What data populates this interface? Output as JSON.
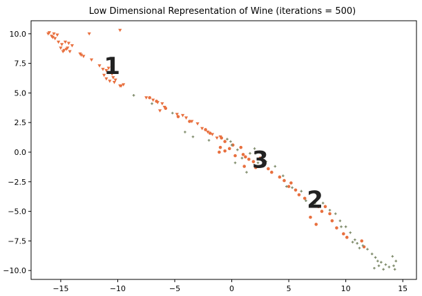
{
  "chart_data": {
    "type": "scatter",
    "title": "Low Dimensional Representation of Wine (iterations = 500)",
    "xlabel": "",
    "ylabel": "",
    "xlim": [
      -17.6,
      16.2
    ],
    "ylim": [
      -10.75,
      11.1
    ],
    "xticks": [
      -15,
      -10,
      -5,
      0,
      5,
      10,
      15
    ],
    "yticks": [
      10.0,
      7.5,
      5.0,
      2.5,
      0.0,
      -2.5,
      -5.0,
      -7.5,
      -10.0
    ],
    "ytick_labels": [
      "10.0",
      "7.5",
      "5.0",
      "2.5",
      "0.0",
      "−2.5",
      "−5.0",
      "−7.5",
      "−10.0"
    ],
    "xtick_labels": [
      "−15",
      "−10",
      "−5",
      "0",
      "5",
      "10",
      "15"
    ],
    "grid": false,
    "colors": {
      "orange": "#e8703f",
      "green": "#7e8b6a",
      "frame": "#000000"
    },
    "cluster_labels": [
      {
        "text": "1",
        "x": -10.5,
        "y": 7.3
      },
      {
        "text": "3",
        "x": 2.5,
        "y": -0.6
      },
      {
        "text": "2",
        "x": 7.3,
        "y": -4.0
      }
    ],
    "series": [
      {
        "marker": "triangle-down",
        "color": "#e8703f",
        "points": [
          [
            -16.1,
            10.0
          ],
          [
            -15.8,
            9.8
          ],
          [
            -15.6,
            10.0
          ],
          [
            -15.5,
            9.6
          ],
          [
            -15.3,
            9.9
          ],
          [
            -15.7,
            9.7
          ],
          [
            -15.2,
            9.3
          ],
          [
            -14.9,
            9.1
          ],
          [
            -15.0,
            8.8
          ],
          [
            -14.7,
            8.6
          ],
          [
            -14.5,
            8.7
          ],
          [
            -14.2,
            8.5
          ],
          [
            -14.6,
            9.3
          ],
          [
            -14.3,
            9.2
          ],
          [
            -14.0,
            9.0
          ],
          [
            -14.4,
            8.8
          ],
          [
            -13.3,
            8.3
          ],
          [
            -13.0,
            8.1
          ],
          [
            -12.3,
            7.8
          ],
          [
            -11.6,
            7.3
          ],
          [
            -11.3,
            7.0
          ],
          [
            -11.0,
            6.9
          ],
          [
            -10.8,
            7.1
          ],
          [
            -11.2,
            6.5
          ],
          [
            -11.0,
            6.2
          ],
          [
            -10.7,
            6.0
          ],
          [
            -10.4,
            6.3
          ],
          [
            -10.2,
            6.1
          ],
          [
            -10.5,
            6.6
          ],
          [
            -9.8,
            5.6
          ],
          [
            -9.5,
            5.7
          ],
          [
            -12.5,
            10.0
          ],
          [
            -9.8,
            10.3
          ],
          [
            -7.5,
            4.6
          ],
          [
            -6.9,
            4.4
          ],
          [
            -6.5,
            4.2
          ],
          [
            -6.1,
            4.1
          ],
          [
            -5.9,
            3.8
          ],
          [
            -6.3,
            3.5
          ],
          [
            -4.8,
            3.2
          ],
          [
            -4.3,
            3.1
          ],
          [
            -4.0,
            2.9
          ],
          [
            -3.5,
            2.6
          ],
          [
            -3.0,
            2.4
          ],
          [
            -2.6,
            2.0
          ],
          [
            -2.1,
            1.7
          ],
          [
            -1.7,
            1.5
          ],
          [
            -1.3,
            1.2
          ],
          [
            -1.0,
            1.3
          ],
          [
            -10.3,
            5.9
          ],
          [
            -13.2,
            8.2
          ],
          [
            -14.8,
            8.5
          ],
          [
            -9.7,
            5.6
          ],
          [
            -16.0,
            10.1
          ]
        ]
      },
      {
        "marker": "circle",
        "color": "#e8703f",
        "points": [
          [
            -7.2,
            4.6
          ],
          [
            -6.6,
            4.3
          ],
          [
            -5.8,
            3.7
          ],
          [
            -4.7,
            3.0
          ],
          [
            -3.7,
            2.6
          ],
          [
            -2.3,
            1.9
          ],
          [
            -1.9,
            1.6
          ],
          [
            -0.9,
            1.2
          ],
          [
            -0.6,
            0.9
          ],
          [
            -1.0,
            0.4
          ],
          [
            -0.6,
            0.1
          ],
          [
            -0.2,
            0.3
          ],
          [
            0.3,
            -0.3
          ],
          [
            0.8,
            0.4
          ],
          [
            1.0,
            -0.2
          ],
          [
            1.2,
            -0.4
          ],
          [
            1.5,
            -0.6
          ],
          [
            1.1,
            -1.2
          ],
          [
            1.9,
            -0.8
          ],
          [
            2.5,
            -0.5
          ],
          [
            2.8,
            -0.9
          ],
          [
            3.2,
            -1.4
          ],
          [
            3.5,
            -1.7
          ],
          [
            4.2,
            -2.1
          ],
          [
            4.6,
            -2.4
          ],
          [
            5.2,
            -2.6
          ],
          [
            5.6,
            -3.2
          ],
          [
            5.9,
            -3.6
          ],
          [
            6.4,
            -3.9
          ],
          [
            7.0,
            -4.5
          ],
          [
            7.6,
            -4.6
          ],
          [
            8.2,
            -4.6
          ],
          [
            7.9,
            -5.0
          ],
          [
            8.8,
            -5.8
          ],
          [
            9.2,
            -6.4
          ],
          [
            9.8,
            -6.9
          ],
          [
            7.4,
            -6.1
          ],
          [
            6.9,
            -5.5
          ],
          [
            11.4,
            -7.5
          ],
          [
            11.6,
            -8.0
          ],
          [
            10.1,
            -7.2
          ],
          [
            8.6,
            -5.2
          ],
          [
            5.0,
            -2.9
          ],
          [
            -1.1,
            0.0
          ],
          [
            2.1,
            -1.3
          ],
          [
            0.1,
            0.6
          ]
        ]
      },
      {
        "marker": "plus",
        "color": "#7e8b6a",
        "points": [
          [
            -8.6,
            4.8
          ],
          [
            -7.0,
            4.1
          ],
          [
            -5.2,
            3.3
          ],
          [
            -4.1,
            1.7
          ],
          [
            -3.4,
            1.3
          ],
          [
            -2.0,
            1.0
          ],
          [
            -0.4,
            1.1
          ],
          [
            0.0,
            0.6
          ],
          [
            0.5,
            0.2
          ],
          [
            0.9,
            -0.5
          ],
          [
            1.6,
            -0.1
          ],
          [
            2.0,
            0.3
          ],
          [
            1.3,
            -1.7
          ],
          [
            2.3,
            -0.9
          ],
          [
            3.0,
            -0.8
          ],
          [
            3.8,
            -1.2
          ],
          [
            4.5,
            -2.0
          ],
          [
            4.8,
            -2.9
          ],
          [
            5.3,
            -3.0
          ],
          [
            6.1,
            -3.3
          ],
          [
            6.5,
            -4.1
          ],
          [
            7.3,
            -4.3
          ],
          [
            8.0,
            -4.3
          ],
          [
            8.6,
            -4.9
          ],
          [
            9.1,
            -5.2
          ],
          [
            9.5,
            -5.8
          ],
          [
            10.0,
            -6.3
          ],
          [
            10.4,
            -6.8
          ],
          [
            10.8,
            -7.4
          ],
          [
            11.0,
            -7.7
          ],
          [
            11.5,
            -7.9
          ],
          [
            11.9,
            -8.2
          ],
          [
            12.3,
            -8.6
          ],
          [
            12.6,
            -8.9
          ],
          [
            12.8,
            -9.2
          ],
          [
            13.1,
            -9.3
          ],
          [
            13.5,
            -9.5
          ],
          [
            13.8,
            -9.7
          ],
          [
            14.2,
            -9.6
          ],
          [
            14.4,
            -9.2
          ],
          [
            14.1,
            -8.8
          ],
          [
            12.5,
            -9.8
          ],
          [
            12.9,
            -9.6
          ],
          [
            13.3,
            -9.9
          ],
          [
            14.3,
            -9.9
          ],
          [
            10.6,
            -7.6
          ],
          [
            9.6,
            -6.3
          ],
          [
            11.2,
            -8.1
          ],
          [
            -0.1,
            0.9
          ],
          [
            0.3,
            -0.9
          ],
          [
            2.1,
            -0.1
          ]
        ]
      }
    ]
  }
}
